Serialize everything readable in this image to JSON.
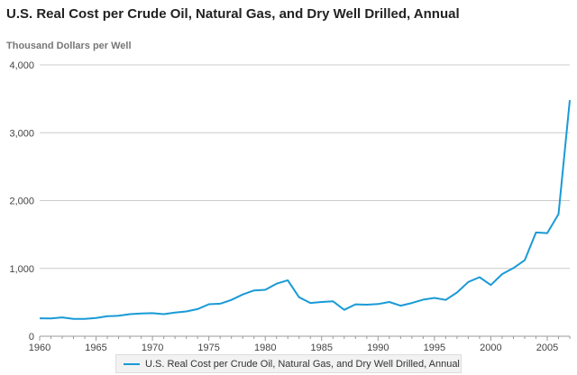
{
  "header": {
    "title": "U.S. Real Cost per Crude Oil, Natural Gas, and Dry Well Drilled, Annual",
    "unit_label": "Thousand Dollars per Well"
  },
  "colors": {
    "series": "#1a9ad6",
    "grid": "#cccccc",
    "axis": "#999999"
  },
  "chart_data": {
    "type": "line",
    "title": "U.S. Real Cost per Crude Oil, Natural Gas, and Dry Well Drilled, Annual",
    "ylabel": "Thousand Dollars per Well",
    "xlabel": "",
    "xlim": [
      1960,
      2007
    ],
    "ylim": [
      0,
      4000
    ],
    "x_ticks": [
      1960,
      1965,
      1970,
      1975,
      1980,
      1985,
      1990,
      1995,
      2000,
      2005
    ],
    "y_ticks": [
      0,
      1000,
      2000,
      3000,
      4000
    ],
    "y_tick_labels": [
      "0",
      "1,000",
      "2,000",
      "3,000",
      "4,000"
    ],
    "grid": "horizontal",
    "legend_position": "bottom",
    "series": [
      {
        "name": "U.S. Real Cost per Crude Oil, Natural Gas, and Dry Well Drilled, Annual",
        "x": [
          1960,
          1961,
          1962,
          1963,
          1964,
          1965,
          1966,
          1967,
          1968,
          1969,
          1970,
          1971,
          1972,
          1973,
          1974,
          1975,
          1976,
          1977,
          1978,
          1979,
          1980,
          1981,
          1982,
          1983,
          1984,
          1985,
          1986,
          1987,
          1988,
          1989,
          1990,
          1991,
          1992,
          1993,
          1994,
          1995,
          1996,
          1997,
          1998,
          1999,
          2000,
          2001,
          2002,
          2003,
          2004,
          2005,
          2006,
          2007
        ],
        "values": [
          265,
          262,
          278,
          255,
          255,
          270,
          295,
          302,
          325,
          335,
          340,
          325,
          350,
          365,
          400,
          472,
          480,
          535,
          615,
          675,
          685,
          775,
          825,
          575,
          490,
          505,
          515,
          390,
          470,
          465,
          475,
          505,
          450,
          490,
          540,
          565,
          535,
          645,
          800,
          870,
          755,
          915,
          1005,
          1120,
          1530,
          1520,
          1800,
          3480
        ]
      }
    ]
  }
}
